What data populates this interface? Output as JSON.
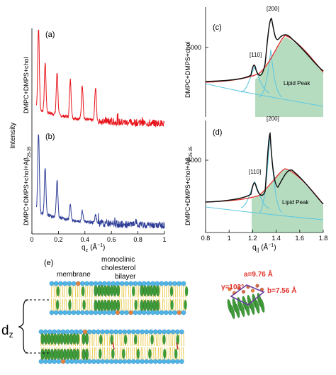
{
  "panels": {
    "a": {
      "label": "(a)",
      "ylabel": "DMPC+DMPS+chol",
      "color": "#e8141b",
      "xlim": [
        0,
        1
      ],
      "peaks_qz": [
        0.05,
        0.1,
        0.19,
        0.29,
        0.38,
        0.48
      ],
      "peak_heights": [
        1.0,
        0.6,
        0.52,
        0.46,
        0.42,
        0.4
      ]
    },
    "b": {
      "label": "(b)",
      "ylabel_main": "DMPC+DMPS+chol+A",
      "ylabel_greek": "β",
      "ylabel_sub": "25-35",
      "color": "#2e3d96",
      "xlim": [
        0,
        1
      ],
      "peaks_qz": [
        0.05,
        0.1,
        0.19,
        0.29,
        0.38,
        0.48
      ],
      "peak_heights": [
        1.0,
        0.58,
        0.46,
        0.18,
        0.14,
        0.1
      ]
    },
    "ab_shared": {
      "ylabel": "Intensity",
      "xlabel_main": "q",
      "xlabel_sub": "z",
      "xlabel_unit": "(Å",
      "xlabel_exp": "−1",
      "xlabel_close": ")",
      "xticks": [
        "0",
        "0.2",
        "0.4",
        "0.6",
        "0.8",
        "1"
      ]
    },
    "c": {
      "label": "(c)",
      "ylabel": "DMPC+DMPS+chol",
      "ytick": "5000",
      "peak_110": "[110]",
      "peak_200": "[200]",
      "lipid_peak": "Lipid Peak"
    },
    "d": {
      "label": "(d)",
      "ylabel_main": "DMPC+DMPS+chol+A",
      "ylabel_greek": "β",
      "ylabel_sub": "25-35",
      "ytick": "5000",
      "peak_110": "[110]",
      "peak_200": "[200]",
      "lipid_peak": "Lipid Peak"
    },
    "cd_shared": {
      "xlabel_main": "q",
      "xlabel_sub": "||",
      "xlabel_unit": "(Å",
      "xlabel_exp": "−1",
      "xlabel_close": ")",
      "xlim": [
        0.8,
        1.8
      ],
      "xticks": [
        "0.8",
        "1",
        "1.2",
        "1.4",
        "1.6",
        "1.8"
      ]
    },
    "e": {
      "label": "(e)",
      "membrane_label": "membrane",
      "bilayer_label_1": "monoclinic",
      "bilayer_label_2": "cholesterol",
      "bilayer_label_3": "bilayer",
      "dz_main": "d",
      "dz_sub": "z",
      "lattice_a": "a=9.76 Å",
      "lattice_gamma": "γ=103°",
      "lattice_b": "b=7.56 Å"
    }
  },
  "colors": {
    "fit_total": "#111111",
    "fit_red": "#e0302a",
    "fit_cyan": "#5ec8e0",
    "lipid_fill": "#2f9a4a",
    "lattice_text": "#e0302a",
    "headgroup": "#4fb4e6",
    "tail": "#e7c640",
    "cholesterol": "#3f9b3a"
  }
}
